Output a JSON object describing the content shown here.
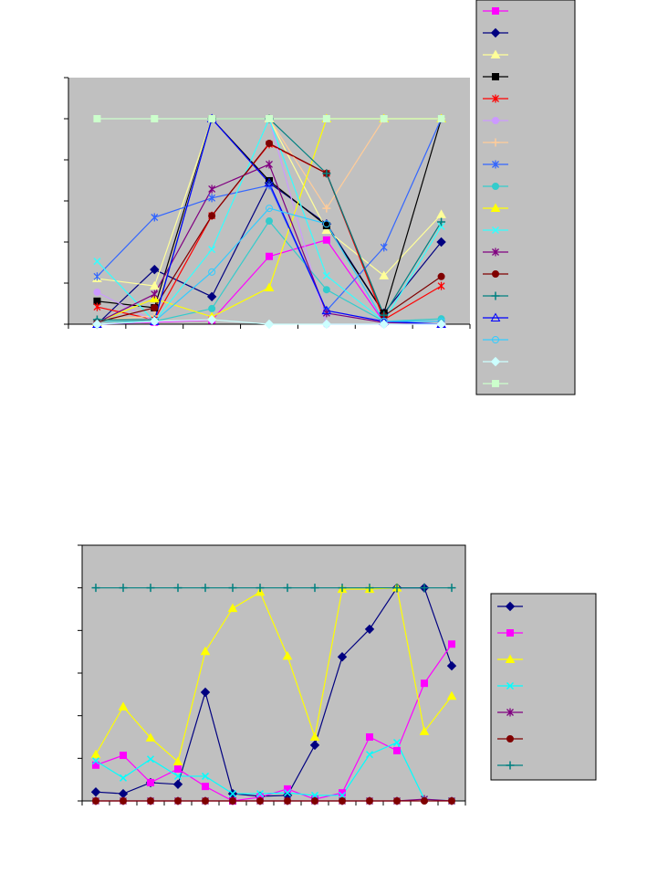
{
  "chart_data": [
    {
      "type": "line",
      "ylim": [
        0,
        6
      ],
      "yticks": [
        0,
        1,
        2,
        3,
        4,
        5,
        6
      ],
      "legend": "right",
      "plot_background": "#c0c0c0",
      "categories": [
        null,
        null,
        null,
        null,
        null,
        null,
        null
      ],
      "series": [
        {
          "color": "#ff00ff",
          "marker": "square",
          "values": [
            0,
            0.05,
            0.1,
            1.65,
            2.05,
            0.05,
            0
          ]
        },
        {
          "color": "#000080",
          "marker": "diamond",
          "values": [
            0,
            1.33,
            0.67,
            3.44,
            2.44,
            0.27,
            2.0
          ]
        },
        {
          "color": "#ffff99",
          "marker": "triangle",
          "values": [
            1.11,
            0.93,
            5,
            5,
            2.29,
            1.18,
            2.67
          ]
        },
        {
          "color": "#000000",
          "marker": "square",
          "values": [
            0.56,
            0.4,
            5,
            3.49,
            2.4,
            0.27,
            5
          ]
        },
        {
          "color": "#ff0000",
          "marker": "star",
          "values": [
            0.42,
            0.11,
            2.64,
            4.38,
            3.67,
            0.11,
            0.93
          ]
        },
        {
          "color": "#cc99ff",
          "marker": "circle",
          "values": [
            0.78,
            0.07,
            5,
            5,
            0,
            0,
            0
          ]
        },
        {
          "color": "#ffcc99",
          "marker": "plus",
          "values": [
            0.1,
            0.2,
            5,
            5,
            2.82,
            5,
            5
          ]
        },
        {
          "color": "#3366ff",
          "marker": "star",
          "values": [
            1.16,
            2.6,
            3.07,
            3.38,
            0.33,
            1.87,
            5
          ]
        },
        {
          "color": "#33cccc",
          "marker": "circle",
          "values": [
            0.07,
            0.07,
            0.38,
            2.51,
            0.84,
            0.07,
            0.13
          ]
        },
        {
          "color": "#ffff00",
          "marker": "triangle",
          "values": [
            0.05,
            0.62,
            0.18,
            0.89,
            5,
            5,
            5
          ]
        },
        {
          "color": "#33ffff",
          "marker": "x",
          "values": [
            1.53,
            0.07,
            1.82,
            5,
            1.18,
            0.07,
            2.38
          ]
        },
        {
          "color": "#800080",
          "marker": "star",
          "values": [
            0.04,
            0.73,
            3.29,
            3.89,
            0.27,
            0.04,
            0
          ]
        },
        {
          "color": "#800000",
          "marker": "circle",
          "values": [
            0.05,
            0.4,
            2.64,
            4.4,
            3.67,
            0.2,
            1.16
          ]
        },
        {
          "color": "#008080",
          "marker": "plus",
          "values": [
            0.11,
            0.11,
            5,
            5,
            3.67,
            0.22,
            2.49
          ]
        },
        {
          "color": "#0000ff",
          "marker": "open-triangle",
          "values": [
            0,
            0.07,
            5,
            3.44,
            0.33,
            0.07,
            0
          ]
        },
        {
          "color": "#33ccff",
          "marker": "open-circle",
          "values": [
            0,
            0.07,
            1.27,
            2.82,
            2.44,
            0.07,
            0.07
          ]
        },
        {
          "color": "#ccffff",
          "marker": "diamond",
          "values": [
            0,
            0.07,
            0.11,
            0,
            0,
            0,
            0
          ]
        },
        {
          "color": "#ccffcc",
          "marker": "square",
          "values": [
            5,
            5,
            5,
            5,
            5,
            5,
            5
          ]
        }
      ]
    },
    {
      "type": "line",
      "ylim": [
        0,
        6
      ],
      "yticks": [
        0,
        1,
        2,
        3,
        4,
        5,
        6
      ],
      "legend": "right",
      "plot_background": "#c0c0c0",
      "categories": [
        null,
        null,
        null,
        null,
        null,
        null,
        null,
        null,
        null,
        null,
        null,
        null,
        null,
        null
      ],
      "series": [
        {
          "color": "#000080",
          "marker": "diamond",
          "values": [
            0.21,
            0.17,
            0.43,
            0.39,
            2.55,
            0.17,
            0.11,
            0.13,
            1.31,
            3.38,
            4.03,
            5,
            5,
            3.17
          ]
        },
        {
          "color": "#ff00ff",
          "marker": "square",
          "values": [
            0.84,
            1.07,
            0.43,
            0.75,
            0.34,
            0,
            0.09,
            0.28,
            0.04,
            0.19,
            1.5,
            1.18,
            2.76,
            3.68
          ]
        },
        {
          "color": "#ffff00",
          "marker": "triangle",
          "values": [
            1.09,
            2.21,
            1.48,
            0.92,
            3.51,
            4.52,
            4.9,
            3.4,
            1.5,
            4.97,
            4.97,
            5,
            1.63,
            2.46
          ]
        },
        {
          "color": "#00ffff",
          "marker": "x",
          "values": [
            0.94,
            0.54,
            0.98,
            0.58,
            0.58,
            0.17,
            0.17,
            0.19,
            0.13,
            0.13,
            1.09,
            1.37,
            0.04,
            0
          ]
        },
        {
          "color": "#800080",
          "marker": "star",
          "values": [
            0,
            0,
            0,
            0,
            0,
            0,
            0,
            0,
            0,
            0,
            0,
            0,
            0.04,
            0
          ]
        },
        {
          "color": "#800000",
          "marker": "circle",
          "values": [
            0,
            0,
            0,
            0,
            0,
            0,
            0,
            0,
            0,
            0,
            0,
            0,
            0,
            0
          ]
        },
        {
          "color": "#008080",
          "marker": "plus",
          "values": [
            5,
            5,
            5,
            5,
            5,
            5,
            5,
            5,
            5,
            5,
            5,
            5,
            5,
            5
          ]
        }
      ]
    }
  ]
}
